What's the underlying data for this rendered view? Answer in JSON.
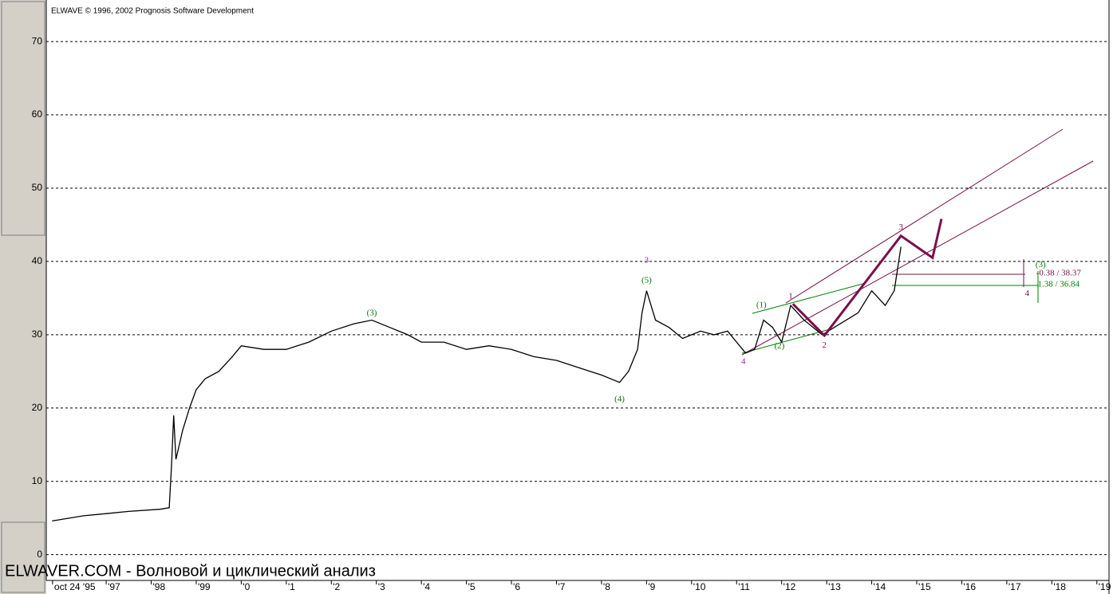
{
  "chart_data": {
    "type": "line",
    "title": "ELWAVE © 1996, 2002 Prognosis Software Development",
    "watermark": "ELWAVER.COM - Волновой и циклический анализ",
    "xlim": [
      1995.67,
      2019.27
    ],
    "ylim": [
      -3.3,
      74.8
    ],
    "yticks": [
      0,
      10,
      20,
      30,
      40,
      50,
      60,
      70
    ],
    "xticks": [
      {
        "value": 1995.81,
        "label": "oct 24 '95"
      },
      {
        "value": 1997,
        "label": "'97"
      },
      {
        "value": 1998,
        "label": "'98"
      },
      {
        "value": 1999,
        "label": "'99"
      },
      {
        "value": 2000,
        "label": "'0"
      },
      {
        "value": 2001,
        "label": "'1"
      },
      {
        "value": 2002,
        "label": "'2"
      },
      {
        "value": 2003,
        "label": "'3"
      },
      {
        "value": 2004,
        "label": "'4"
      },
      {
        "value": 2005,
        "label": "'5"
      },
      {
        "value": 2006,
        "label": "'6"
      },
      {
        "value": 2007,
        "label": "'7"
      },
      {
        "value": 2008,
        "label": "'8"
      },
      {
        "value": 2009,
        "label": "'9"
      },
      {
        "value": 2010,
        "label": "'10"
      },
      {
        "value": 2011,
        "label": "'11"
      },
      {
        "value": 2012,
        "label": "'12"
      },
      {
        "value": 2013,
        "label": "'13"
      },
      {
        "value": 2014,
        "label": "'14"
      },
      {
        "value": 2015,
        "label": "'15"
      },
      {
        "value": 2016,
        "label": "'16"
      },
      {
        "value": 2017,
        "label": "'17"
      },
      {
        "value": 2018,
        "label": "'18"
      },
      {
        "value": 2019,
        "label": "'19"
      }
    ],
    "grid": true,
    "series": [
      {
        "color": "#000000",
        "width": 1.3,
        "x": [
          1995.8,
          1996.5,
          1997,
          1997.5,
          1998.2,
          1998.4,
          1998.45,
          1998.5,
          1998.55,
          1998.7,
          1998.85,
          1999,
          1999.2,
          1999.5,
          1999.8,
          2000,
          2000.5,
          2001,
          2001.5,
          2002,
          2002.5,
          2002.9,
          2003.3,
          2003.7,
          2004,
          2004.5,
          2005,
          2005.5,
          2006,
          2006.5,
          2007,
          2007.5,
          2008,
          2008.4,
          2008.6,
          2008.8,
          2008.9,
          2009,
          2009.2,
          2009.5,
          2009.8,
          2010.2,
          2010.5,
          2010.8,
          2011,
          2011.2,
          2011.4,
          2011.6,
          2011.8,
          2012,
          2012.2,
          2012.5,
          2012.9,
          2013.3,
          2013.7,
          2014,
          2014.3,
          2014.5,
          2014.65
        ],
        "values": [
          4.6,
          5.3,
          5.6,
          5.9,
          6.2,
          6.4,
          12,
          19,
          13,
          17,
          20,
          22.5,
          24,
          25,
          27,
          28.5,
          28,
          28,
          29,
          30.5,
          31.5,
          32,
          31,
          30,
          29,
          29,
          28,
          28.5,
          28,
          27,
          26.5,
          25.5,
          24.5,
          23.5,
          25,
          28,
          33,
          36,
          32,
          31,
          29.5,
          30.5,
          30,
          30.5,
          29,
          27.5,
          28,
          32,
          31,
          29,
          34,
          32,
          30,
          31.5,
          33,
          36,
          34,
          36,
          42
        ]
      },
      {
        "color": "#7a1048",
        "width": 3,
        "x": [
          2012.25,
          2012.95,
          2014.65,
          2015.35,
          2015.55
        ],
        "values": [
          34.2,
          29.9,
          43.5,
          40.5,
          45.8
        ]
      }
    ],
    "annotations": [
      {
        "text": "(3)",
        "x": 2002.9,
        "y": 32.9,
        "color": "#008000"
      },
      {
        "text": "(4)",
        "x": 2008.4,
        "y": 21.2,
        "color": "#008000"
      },
      {
        "text": "(5)",
        "x": 2009,
        "y": 37.4,
        "color": "#008000"
      },
      {
        "text": "3",
        "x": 2009,
        "y": 40.1,
        "color": "#a020a0"
      },
      {
        "text": "(1)",
        "x": 2011.55,
        "y": 34,
        "color": "#008000"
      },
      {
        "text": "(2)",
        "x": 2011.95,
        "y": 28.4,
        "color": "#008000"
      },
      {
        "text": "4",
        "x": 2011.15,
        "y": 26.3,
        "color": "#a020a0"
      },
      {
        "text": "1",
        "x": 2012.2,
        "y": 35.2,
        "color": "#7a1048"
      },
      {
        "text": "2",
        "x": 2012.95,
        "y": 28.5,
        "color": "#7a1048"
      },
      {
        "text": "3",
        "x": 2014.65,
        "y": 44.6,
        "color": "#7a1048"
      },
      {
        "text": "4",
        "x": 2017.45,
        "y": 35.6,
        "color": "#7a1048"
      },
      {
        "text": "(3)",
        "x": 2017.75,
        "y": 39.5,
        "color": "#008000"
      },
      {
        "text": "-0.38 / 38.37",
        "x": 2018.15,
        "y": 38.37,
        "color": "#7a1048"
      },
      {
        "text": "1.38 / 36.84",
        "x": 2018.15,
        "y": 36.84,
        "color": "#008000"
      }
    ]
  }
}
